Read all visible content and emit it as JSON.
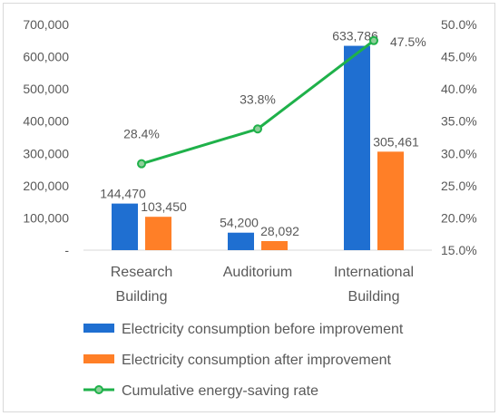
{
  "chart_data": {
    "type": "bar",
    "categories": [
      [
        "Research",
        "Building"
      ],
      [
        "Auditorium"
      ],
      [
        "International",
        "Building"
      ]
    ],
    "series": [
      {
        "name": "Electricity consumption before improvement",
        "kind": "bar",
        "axis": "left",
        "color": "#1f6fd1",
        "values": [
          144470,
          54200,
          633786
        ],
        "labels": [
          "144,470",
          "54,200",
          "633,786"
        ]
      },
      {
        "name": "Electricity consumption after improvement",
        "kind": "bar",
        "axis": "left",
        "color": "#ff7f27",
        "values": [
          103450,
          28092,
          305461
        ],
        "labels": [
          "103,450",
          "28,092",
          "305,461"
        ]
      },
      {
        "name": "Cumulative energy-saving rate",
        "kind": "line",
        "axis": "right",
        "color": "#1fb14a",
        "values": [
          28.4,
          33.8,
          47.5
        ],
        "labels": [
          "28.4%",
          "33.8%",
          "47.5%"
        ]
      }
    ],
    "y_left": {
      "min": 0,
      "max": 700000,
      "ticks": [
        "-",
        "100,000",
        "200,000",
        "300,000",
        "400,000",
        "500,000",
        "600,000",
        "700,000"
      ]
    },
    "y_right": {
      "min": 15,
      "max": 50,
      "ticks": [
        "15.0%",
        "20.0%",
        "25.0%",
        "30.0%",
        "35.0%",
        "40.0%",
        "45.0%",
        "50.0%"
      ]
    },
    "grid": false,
    "legend_position": "bottom"
  }
}
